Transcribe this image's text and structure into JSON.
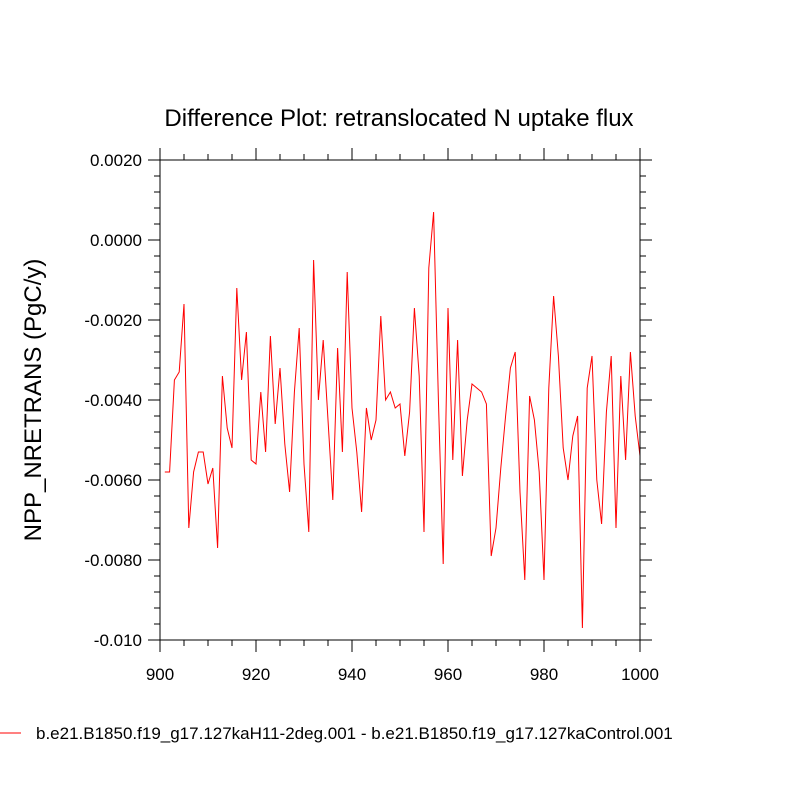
{
  "chart_data": {
    "type": "line",
    "title": "Difference Plot: retranslocated N uptake flux",
    "xlabel": "",
    "ylabel": "NPP_NRETRANS  (PgC/y)",
    "xlim": [
      900,
      1000
    ],
    "ylim": [
      -0.01,
      0.002
    ],
    "x_ticks": [
      900,
      920,
      940,
      960,
      980,
      1000
    ],
    "x_tick_labels": [
      "900",
      "920",
      "940",
      "960",
      "980",
      "1000"
    ],
    "y_ticks": [
      0.002,
      0.0,
      -0.002,
      -0.004,
      -0.006,
      -0.008,
      -0.01
    ],
    "y_tick_labels": [
      "0.0020",
      "0.0000",
      "-0.0020",
      "-0.0040",
      "-0.0060",
      "-0.0080",
      "-0.010"
    ],
    "grid": false,
    "legend_position": "bottom",
    "series": [
      {
        "name": "b.e21.B1850.f19_g17.127kaH11-2deg.001 - b.e21.B1850.f19_g17.127kaControl.001",
        "color": "#ff0000",
        "x": [
          901,
          902,
          903,
          904,
          905,
          906,
          907,
          908,
          909,
          910,
          911,
          912,
          913,
          914,
          915,
          916,
          917,
          918,
          919,
          920,
          921,
          922,
          923,
          924,
          925,
          926,
          927,
          928,
          929,
          930,
          931,
          932,
          933,
          934,
          935,
          936,
          937,
          938,
          939,
          940,
          941,
          942,
          943,
          944,
          945,
          946,
          947,
          948,
          949,
          950,
          951,
          952,
          953,
          954,
          955,
          956,
          957,
          958,
          959,
          960,
          961,
          962,
          963,
          964,
          965,
          966,
          967,
          968,
          969,
          970,
          971,
          972,
          973,
          974,
          975,
          976,
          977,
          978,
          979,
          980,
          981,
          982,
          983,
          984,
          985,
          986,
          987,
          988,
          989,
          990,
          991,
          992,
          993,
          994,
          995,
          996,
          997,
          998,
          999,
          1000
        ],
        "values": [
          -0.0058,
          -0.0058,
          -0.0035,
          -0.0033,
          -0.0016,
          -0.0072,
          -0.0058,
          -0.0053,
          -0.0053,
          -0.0061,
          -0.0057,
          -0.0077,
          -0.0034,
          -0.0047,
          -0.0052,
          -0.0012,
          -0.0035,
          -0.0023,
          -0.0055,
          -0.0056,
          -0.0038,
          -0.0053,
          -0.0024,
          -0.0046,
          -0.0032,
          -0.0051,
          -0.0063,
          -0.0038,
          -0.0022,
          -0.0056,
          -0.0073,
          -0.0005,
          -0.004,
          -0.0025,
          -0.0045,
          -0.0065,
          -0.0027,
          -0.0053,
          -0.0008,
          -0.0042,
          -0.0053,
          -0.0068,
          -0.0042,
          -0.005,
          -0.0045,
          -0.0019,
          -0.004,
          -0.0038,
          -0.0042,
          -0.0041,
          -0.0054,
          -0.0043,
          -0.0017,
          -0.0034,
          -0.0073,
          -0.0007,
          0.0007,
          -0.004,
          -0.0081,
          -0.0017,
          -0.0055,
          -0.0025,
          -0.0059,
          -0.0045,
          -0.0036,
          -0.0037,
          -0.0038,
          -0.0041,
          -0.0079,
          -0.0072,
          -0.0057,
          -0.0044,
          -0.0032,
          -0.0028,
          -0.0063,
          -0.0085,
          -0.0039,
          -0.0045,
          -0.0058,
          -0.0085,
          -0.0037,
          -0.0014,
          -0.0029,
          -0.0052,
          -0.006,
          -0.0049,
          -0.0044,
          -0.0097,
          -0.0037,
          -0.0029,
          -0.006,
          -0.0071,
          -0.0043,
          -0.0029,
          -0.0072,
          -0.0034,
          -0.0055,
          -0.0028,
          -0.0044,
          -0.0054
        ]
      }
    ]
  }
}
